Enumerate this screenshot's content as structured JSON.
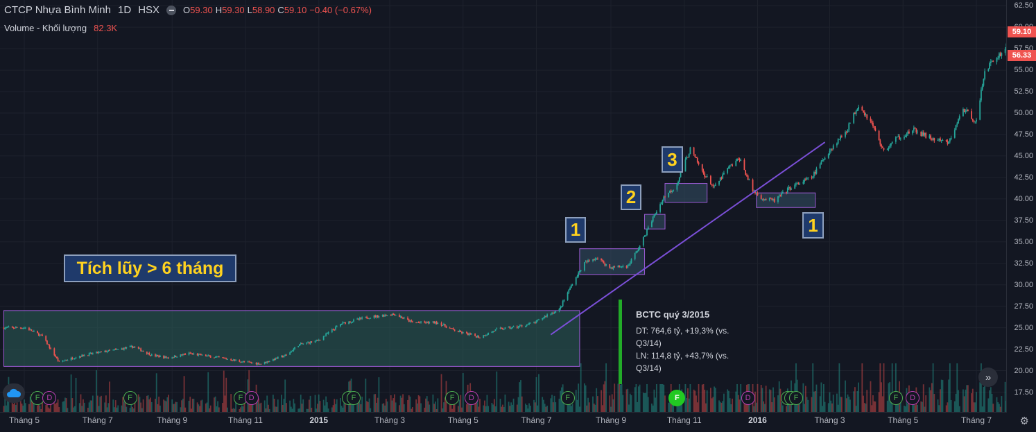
{
  "legend": {
    "symbol_name": "CTCP Nhựa Bình Minh",
    "interval": "1D",
    "exchange": "HSX",
    "open_label": "O",
    "open": "59.30",
    "high_label": "H",
    "high": "59.30",
    "low_label": "L",
    "low": "58.90",
    "close_label": "C",
    "close": "59.10",
    "change": "−0.40 (−0.67%)",
    "volume_label": "Volume - Khối lượng",
    "volume_value": "82.3K"
  },
  "price_tags": {
    "last": "59.10",
    "secondary": "56.33"
  },
  "annotations": {
    "accumulation": "Tích lũy > 6 tháng",
    "box1": "1",
    "box2": "2",
    "box3": "3",
    "box4": "1"
  },
  "event_tooltip": {
    "title": "BCTC quý 3/2015",
    "revenue": "DT: 764,6 tỷ, +19,3% (vs. Q3/14)",
    "profit": "LN: 114,8 tỷ, +43,7% (vs. Q3/14)"
  },
  "colors": {
    "up": "#26a69a",
    "down": "#ef5350",
    "trendline": "#7b4fd8",
    "box_border": "#9d5cd6",
    "accent": "#ffd21f"
  },
  "icons": {
    "cloud": "cloud-icon",
    "scroll": "double-chevron-right-icon",
    "settings": "gear-icon"
  },
  "events": [
    {
      "type": "f",
      "label": "F",
      "date": "2014-05-12"
    },
    {
      "type": "d",
      "label": "D",
      "date": "2014-05-22"
    },
    {
      "type": "f",
      "label": "F",
      "date": "2014-07-28"
    },
    {
      "type": "f",
      "label": "F",
      "date": "2014-10-28"
    },
    {
      "type": "d",
      "label": "D",
      "date": "2014-11-06"
    },
    {
      "type": "f",
      "label": "F",
      "date": "2015-01-26"
    },
    {
      "type": "f",
      "label": "F",
      "date": "2015-01-30"
    },
    {
      "type": "f",
      "label": "F",
      "date": "2015-04-22"
    },
    {
      "type": "d",
      "label": "D",
      "date": "2015-05-08"
    },
    {
      "type": "f",
      "label": "F",
      "date": "2015-07-27"
    },
    {
      "type": "f",
      "label": "F",
      "date": "2015-10-26",
      "active": true
    },
    {
      "type": "d",
      "label": "D",
      "date": "2015-12-24"
    },
    {
      "type": "f",
      "label": "F",
      "date": "2016-01-26"
    },
    {
      "type": "f",
      "label": "F",
      "date": "2016-01-29"
    },
    {
      "type": "f",
      "label": "F",
      "date": "2016-02-02"
    },
    {
      "type": "f",
      "label": "F",
      "date": "2016-04-25"
    },
    {
      "type": "d",
      "label": "D",
      "date": "2016-05-09"
    }
  ],
  "chart_data": {
    "type": "candlestick",
    "x_axis": [
      "Tháng 5",
      "Tháng 7",
      "Tháng 9",
      "Tháng 11",
      "2015",
      "Tháng 3",
      "Tháng 5",
      "Tháng 7",
      "Tháng 9",
      "Tháng 11",
      "2016",
      "Tháng 3",
      "Tháng 5",
      "Tháng 7"
    ],
    "y_ticks": [
      "62.50",
      "60.00",
      "57.50",
      "55.00",
      "52.50",
      "50.00",
      "47.50",
      "45.00",
      "42.50",
      "40.00",
      "37.50",
      "35.00",
      "32.50",
      "30.00",
      "27.50",
      "25.00",
      "22.50",
      "20.00",
      "17.50"
    ],
    "ylim": [
      15.2,
      63.0
    ],
    "price_path": [
      [
        "2014-05-02",
        25.0
      ],
      [
        "2014-05-16",
        24.0
      ],
      [
        "2014-05-30",
        21.0
      ],
      [
        "2014-06-13",
        21.6
      ],
      [
        "2014-06-27",
        22.0
      ],
      [
        "2014-07-15",
        22.4
      ],
      [
        "2014-07-31",
        22.8
      ],
      [
        "2014-08-15",
        21.8
      ],
      [
        "2014-08-29",
        21.5
      ],
      [
        "2014-09-15",
        22.0
      ],
      [
        "2014-09-30",
        21.7
      ],
      [
        "2014-10-15",
        21.4
      ],
      [
        "2014-10-31",
        21.0
      ],
      [
        "2014-11-14",
        20.8
      ],
      [
        "2014-11-28",
        21.5
      ],
      [
        "2014-12-05",
        21.8
      ],
      [
        "2014-12-15",
        23.0
      ],
      [
        "2014-12-31",
        23.5
      ],
      [
        "2015-01-20",
        25.5
      ],
      [
        "2015-02-10",
        26.2
      ],
      [
        "2015-03-05",
        26.6
      ],
      [
        "2015-03-20",
        25.6
      ],
      [
        "2015-04-10",
        25.6
      ],
      [
        "2015-04-25",
        24.6
      ],
      [
        "2015-05-15",
        23.9
      ],
      [
        "2015-05-29",
        24.8
      ],
      [
        "2015-06-15",
        25.1
      ],
      [
        "2015-06-30",
        25.6
      ],
      [
        "2015-07-10",
        26.5
      ],
      [
        "2015-07-20",
        27.1
      ],
      [
        "2015-07-31",
        30.2
      ],
      [
        "2015-08-10",
        32.5
      ],
      [
        "2015-08-20",
        33.2
      ],
      [
        "2015-08-31",
        32.0
      ],
      [
        "2015-09-15",
        32.2
      ],
      [
        "2015-09-25",
        34.5
      ],
      [
        "2015-10-05",
        37.5
      ],
      [
        "2015-10-15",
        40.2
      ],
      [
        "2015-10-25",
        41.5
      ],
      [
        "2015-11-06",
        45.8
      ],
      [
        "2015-11-16",
        43.2
      ],
      [
        "2015-11-26",
        41.3
      ],
      [
        "2015-12-07",
        43.5
      ],
      [
        "2015-12-17",
        44.7
      ],
      [
        "2015-12-28",
        41.0
      ],
      [
        "2016-01-06",
        40.0
      ],
      [
        "2016-01-15",
        39.8
      ],
      [
        "2016-01-28",
        41.3
      ],
      [
        "2016-02-15",
        42.5
      ],
      [
        "2016-02-29",
        45.5
      ],
      [
        "2016-03-15",
        48.0
      ],
      [
        "2016-03-25",
        51.0
      ],
      [
        "2016-04-05",
        48.8
      ],
      [
        "2016-04-15",
        45.5
      ],
      [
        "2016-04-25",
        47.0
      ],
      [
        "2016-05-10",
        48.0
      ],
      [
        "2016-05-25",
        47.0
      ],
      [
        "2016-06-08",
        46.5
      ],
      [
        "2016-06-20",
        50.5
      ],
      [
        "2016-07-01",
        49.0
      ],
      [
        "2016-07-08",
        55.0
      ],
      [
        "2016-07-18",
        56.5
      ],
      [
        "2016-07-25",
        57.5
      ],
      [
        "2016-07-29",
        59.1
      ]
    ],
    "rects": [
      {
        "from": "2014-04-14",
        "to": "2015-08-06",
        "low": 20.5,
        "high": 27.0,
        "fill": "#2b5e5a"
      },
      {
        "from": "2015-08-06",
        "to": "2015-09-29",
        "low": 31.2,
        "high": 34.2,
        "fill": "#355066"
      },
      {
        "from": "2015-09-29",
        "to": "2015-10-16",
        "low": 36.5,
        "high": 38.2,
        "fill": "#355066"
      },
      {
        "from": "2015-10-16",
        "to": "2015-11-20",
        "low": 39.6,
        "high": 41.8,
        "fill": "#355066"
      },
      {
        "from": "2015-12-31",
        "to": "2016-02-18",
        "low": 39.0,
        "high": 40.7,
        "fill": "#355066"
      }
    ],
    "trendline": {
      "from": [
        "2015-07-13",
        24.2
      ],
      "to": [
        "2016-02-26",
        46.6
      ]
    }
  }
}
